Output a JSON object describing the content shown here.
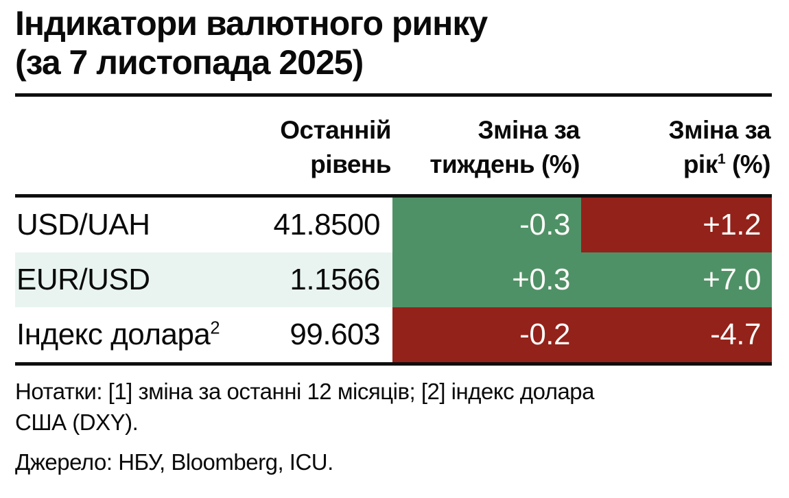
{
  "title": {
    "line1": "Індикатори валютного ринку",
    "line2": "(за 7 листопада 2025)"
  },
  "table": {
    "headers": {
      "last": {
        "line1": "Останній",
        "line2": "рівень"
      },
      "week": {
        "line1": "Зміна за",
        "line2": "тиждень (%)"
      },
      "year": {
        "line1": "Зміна за",
        "line2_base": "рік",
        "line2_sup": "1",
        "line2_rest": " (%)"
      }
    },
    "rows": [
      {
        "label": "USD/UAH",
        "label_sup": "",
        "last": "41.8500",
        "week": "-0.3",
        "week_color": "green",
        "year": "+1.2",
        "year_color": "red"
      },
      {
        "label": "EUR/USD",
        "label_sup": "",
        "last": "1.1566",
        "week": "+0.3",
        "week_color": "green",
        "year": "+7.0",
        "year_color": "green"
      },
      {
        "label": "Індекс долара",
        "label_sup": "2",
        "last": "99.603",
        "week": "-0.2",
        "week_color": "red",
        "year": "-4.7",
        "year_color": "red"
      }
    ]
  },
  "notes": {
    "line1": "Нотатки: [1] зміна за останні 12 місяців; [2] індекс долара",
    "line2": "США (DXY)."
  },
  "source": "Джерело: НБУ, Bloomberg, ICU.",
  "colors": {
    "green": "#4f9166",
    "red": "#93221a",
    "alt_row": "#e9f4f1"
  },
  "chart_data": {
    "type": "table",
    "title": "Індикатори валютного ринку (за 7 листопада 2025)",
    "columns": [
      "",
      "Останній рівень",
      "Зміна за тиждень (%)",
      "Зміна за рік¹ (%)"
    ],
    "rows": [
      {
        "indicator": "USD/UAH",
        "last_level": 41.85,
        "week_change_pct": -0.3,
        "year_change_pct": 1.2,
        "week_cell_color": "green",
        "year_cell_color": "red"
      },
      {
        "indicator": "EUR/USD",
        "last_level": 1.1566,
        "week_change_pct": 0.3,
        "year_change_pct": 7.0,
        "week_cell_color": "green",
        "year_cell_color": "green"
      },
      {
        "indicator": "Індекс долара (DXY)",
        "last_level": 99.603,
        "week_change_pct": -0.2,
        "year_change_pct": -4.7,
        "week_cell_color": "red",
        "year_cell_color": "red"
      }
    ],
    "notes": "Нотатки: [1] зміна за останні 12 місяців; [2] індекс долара США (DXY).",
    "source": "Джерело: НБУ, Bloomberg, ICU."
  }
}
